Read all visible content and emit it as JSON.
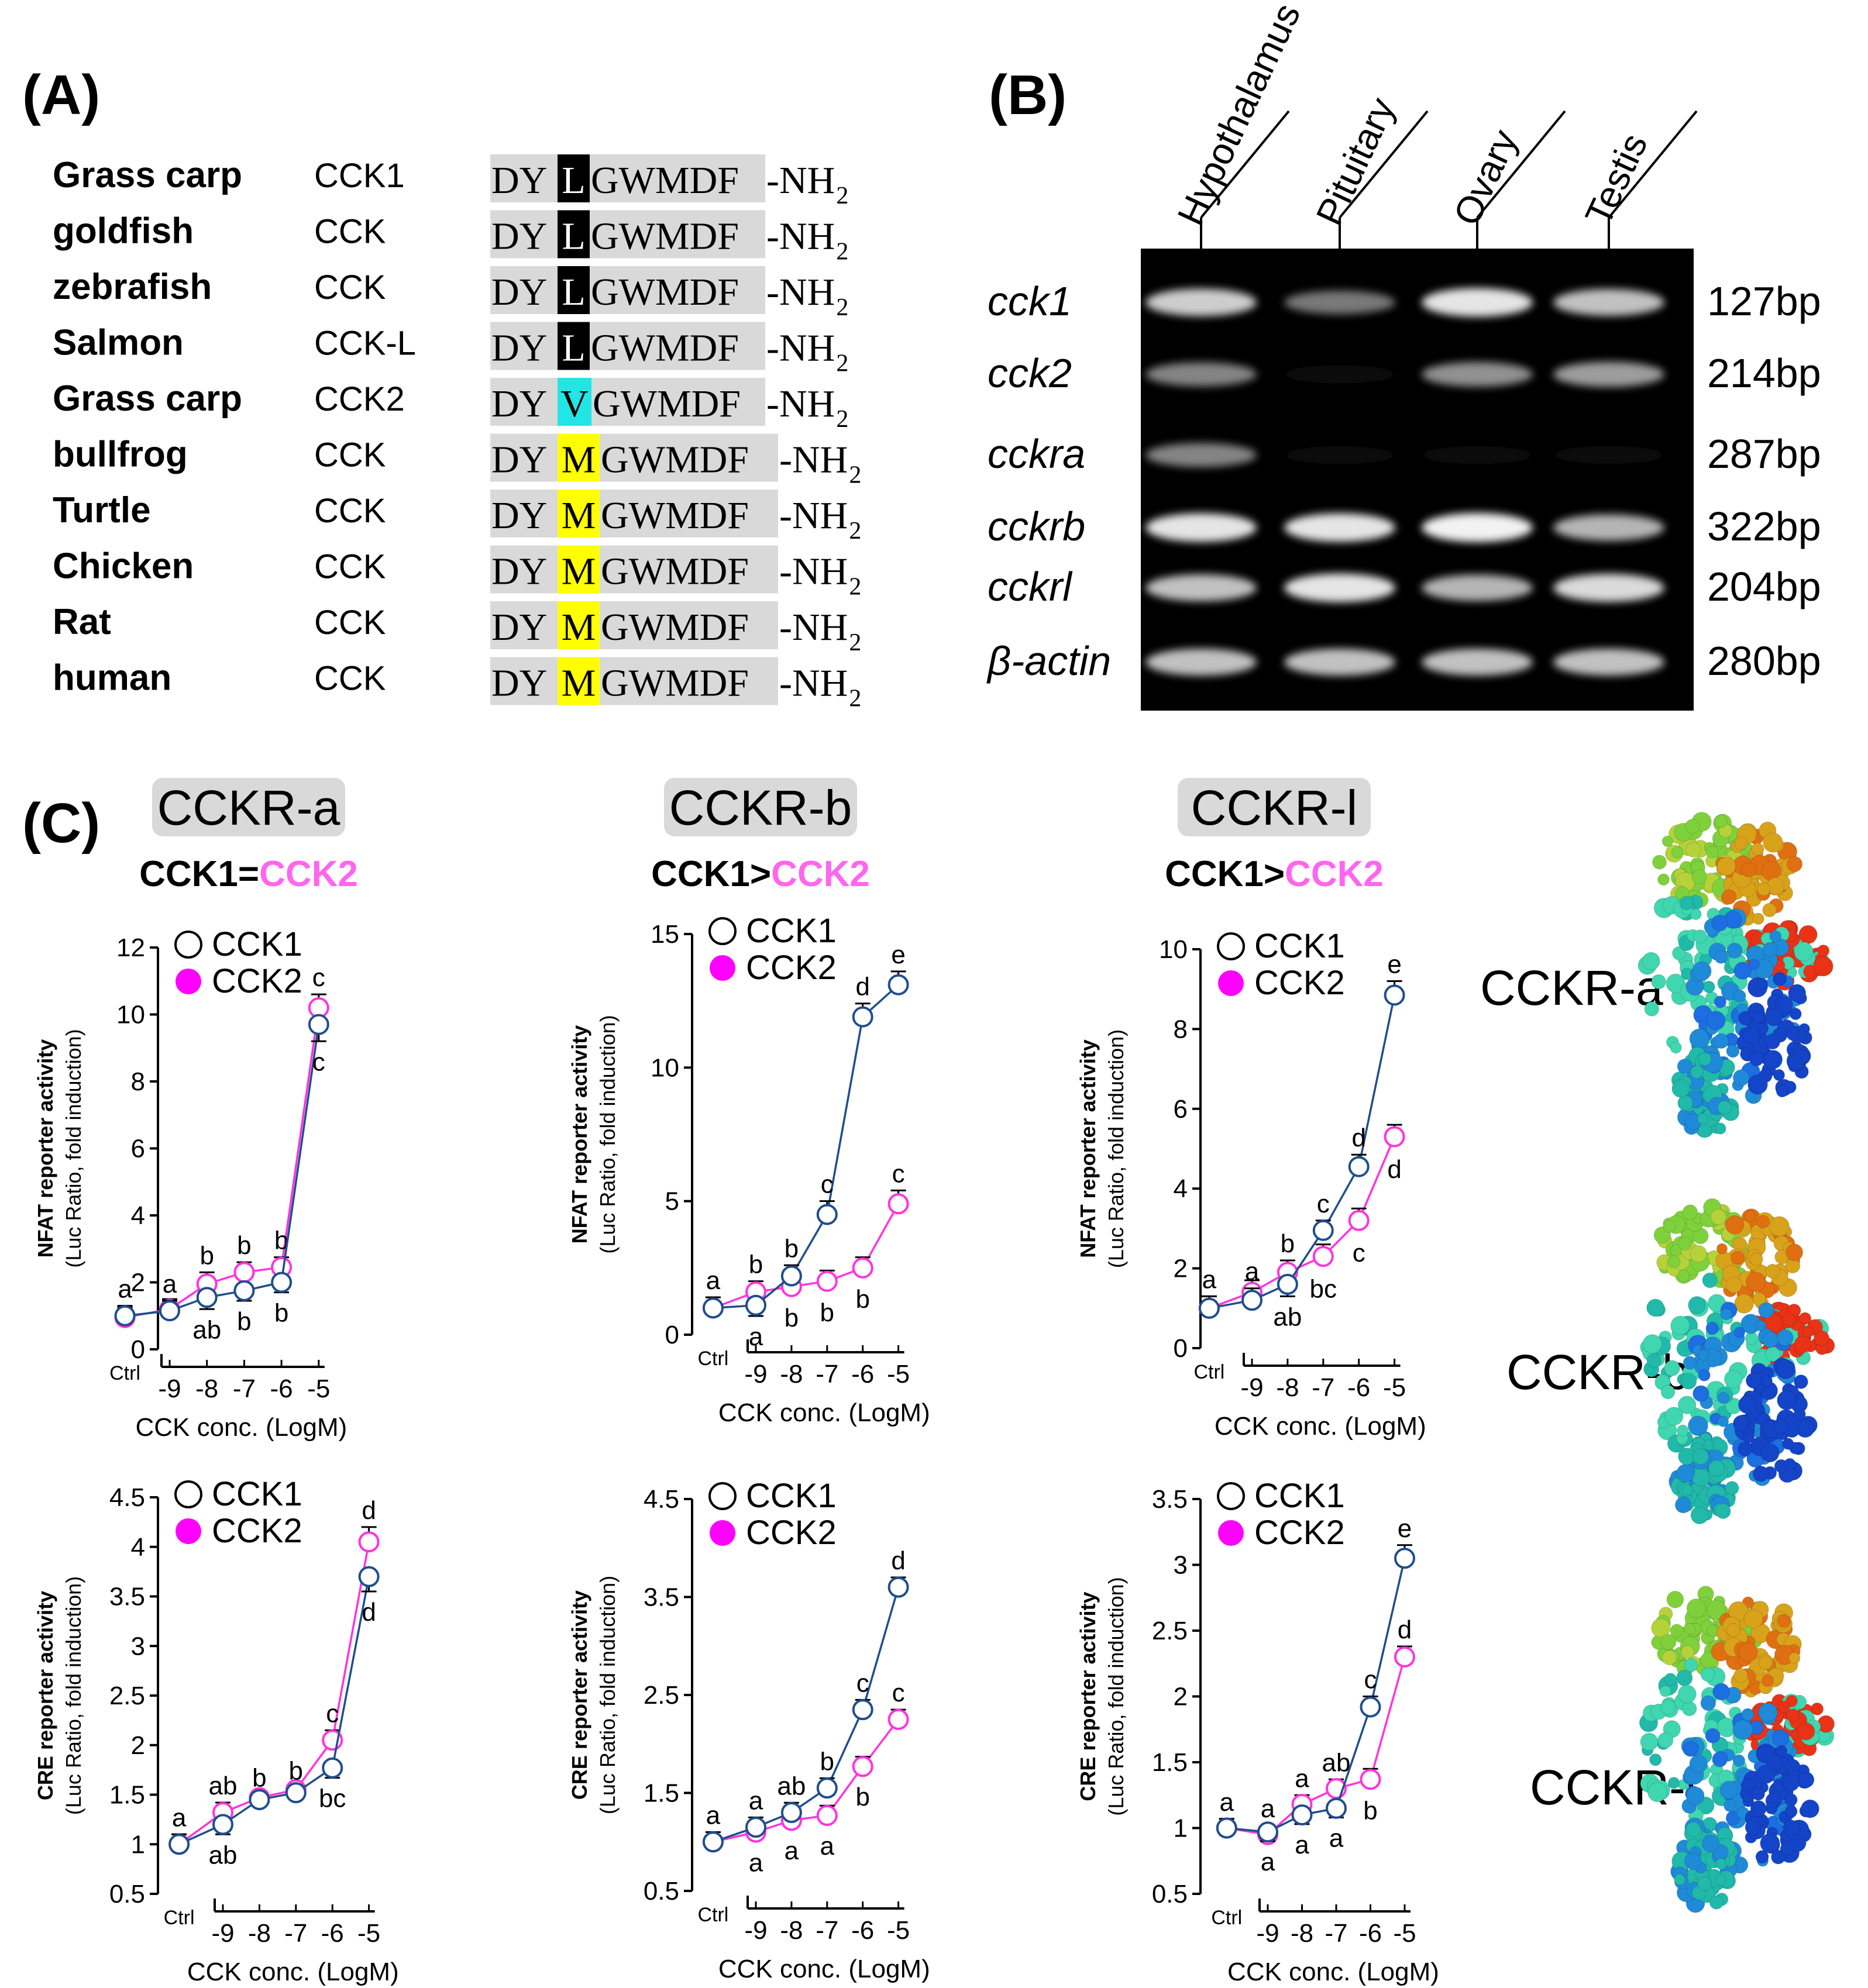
{
  "colors": {
    "cck1_line": "#1f4e8c",
    "cck2_line": "#ff33dd",
    "cck2_text": "#ff66ee",
    "leu_highlight": "#000000",
    "val_highlight": "#22e5e5",
    "met_highlight": "#ffff00",
    "seq_bg": "#d9d9d9",
    "gel_bg": "#000000"
  },
  "panelA": {
    "label": "(A)",
    "rows": [
      {
        "species": "Grass carp",
        "gene": "CCK1",
        "prefix": "DY",
        "residue": "L",
        "rest": "GWMDF",
        "suffix": "-NH",
        "sub": "2",
        "hl": "black"
      },
      {
        "species": "goldfish",
        "gene": "CCK",
        "prefix": "DY",
        "residue": "L",
        "rest": "GWMDF",
        "suffix": "-NH",
        "sub": "2",
        "hl": "black"
      },
      {
        "species": "zebrafish",
        "gene": "CCK",
        "prefix": "DY",
        "residue": "L",
        "rest": "GWMDF",
        "suffix": "-NH",
        "sub": "2",
        "hl": "black"
      },
      {
        "species": "Salmon",
        "gene": "CCK-L",
        "prefix": "DY",
        "residue": "L",
        "rest": "GWMDF",
        "suffix": "-NH",
        "sub": "2",
        "hl": "black"
      },
      {
        "species": "Grass carp",
        "gene": "CCK2",
        "prefix": "DY",
        "residue": "V",
        "rest": "GWMDF",
        "suffix": "-NH",
        "sub": "2",
        "hl": "cyan"
      },
      {
        "species": "bullfrog",
        "gene": "CCK",
        "prefix": "DY",
        "residue": "M",
        "rest": "GWMDF",
        "suffix": "-NH",
        "sub": "2",
        "hl": "yellow"
      },
      {
        "species": "Turtle",
        "gene": "CCK",
        "prefix": "DY",
        "residue": "M",
        "rest": "GWMDF",
        "suffix": "-NH",
        "sub": "2",
        "hl": "yellow"
      },
      {
        "species": "Chicken",
        "gene": "CCK",
        "prefix": "DY",
        "residue": "M",
        "rest": "GWMDF",
        "suffix": "-NH",
        "sub": "2",
        "hl": "yellow"
      },
      {
        "species": "Rat",
        "gene": "CCK",
        "prefix": "DY",
        "residue": "M",
        "rest": "GWMDF",
        "suffix": "-NH",
        "sub": "2",
        "hl": "yellow"
      },
      {
        "species": "human",
        "gene": "CCK",
        "prefix": "DY",
        "residue": "M",
        "rest": "GWMDF",
        "suffix": "-NH",
        "sub": "2",
        "hl": "yellow"
      }
    ]
  },
  "panelB": {
    "label": "(B)",
    "lanes": [
      "Hypothalamus",
      "Pituitary",
      "Ovary",
      "Testis"
    ],
    "genes": [
      {
        "name": "cck1",
        "size": "127bp",
        "intensity": [
          0.85,
          0.5,
          0.95,
          0.8
        ]
      },
      {
        "name": "cck2",
        "size": "214bp",
        "intensity": [
          0.55,
          0.06,
          0.6,
          0.65
        ]
      },
      {
        "name": "cckra",
        "size": "287bp",
        "intensity": [
          0.55,
          0.04,
          0.04,
          0.04
        ]
      },
      {
        "name": "cckrb",
        "size": "322bp",
        "intensity": [
          0.95,
          0.95,
          1.0,
          0.75
        ]
      },
      {
        "name": "cckrl",
        "size": "204bp",
        "intensity": [
          0.8,
          0.95,
          0.75,
          0.9
        ]
      },
      {
        "name": "β-actin",
        "size": "280bp",
        "intensity": [
          0.8,
          0.8,
          0.8,
          0.8
        ]
      }
    ]
  },
  "panelC": {
    "label": "(C)",
    "columns": [
      {
        "title": "CCKR-a",
        "cmp_a": "CCK1",
        "cmp_op": "=",
        "cmp_b": "CCK2"
      },
      {
        "title": "CCKR-b",
        "cmp_a": "CCK1",
        "cmp_op": ">",
        "cmp_b": "CCK2"
      },
      {
        "title": "CCKR-l",
        "cmp_a": "CCK1",
        "cmp_op": ">",
        "cmp_b": "CCK2"
      }
    ],
    "structures": [
      "CCKR-a",
      "CCKR-b",
      "CCKR-l"
    ]
  },
  "chart_data": [
    {
      "type": "line",
      "id": "nfat_a",
      "title": "CCKR-a NFAT",
      "ylabel": "NFAT reporter activity",
      "ylabel2": "(Luc Ratio, fold induction)",
      "xlabel": "CCK conc. (LogM)",
      "x": [
        "Ctrl",
        "-9",
        "-8",
        "-7",
        "-6",
        "-5"
      ],
      "ylim": [
        0,
        12
      ],
      "yticks": [
        "0",
        "2",
        "4",
        "6",
        "8",
        "10",
        "12"
      ],
      "legend": [
        "CCK1",
        "CCK2"
      ],
      "series": [
        {
          "name": "CCK1",
          "values": [
            1.0,
            1.15,
            1.55,
            1.75,
            2.0,
            9.7
          ],
          "errors": [
            0.3,
            0.3,
            0.35,
            0.3,
            0.3,
            0.5
          ],
          "letters": [
            "a",
            "a",
            "ab",
            "b",
            "b",
            "c"
          ],
          "letter_pos": [
            "above",
            "above",
            "below",
            "below",
            "below",
            "below"
          ]
        },
        {
          "name": "CCK2",
          "values": [
            0.95,
            1.2,
            1.95,
            2.3,
            2.45,
            10.2
          ],
          "errors": [
            0.3,
            0.3,
            0.35,
            0.3,
            0.3,
            0.4
          ],
          "letters": [
            "",
            "",
            "b",
            "b",
            "b",
            "c"
          ],
          "letter_pos": [
            "above",
            "above",
            "above",
            "above",
            "above",
            "above"
          ]
        }
      ]
    },
    {
      "type": "line",
      "id": "nfat_b",
      "title": "CCKR-b NFAT",
      "ylabel": "NFAT reporter activity",
      "ylabel2": "(Luc Ratio, fold induction)",
      "xlabel": "CCK conc. (LogM)",
      "x": [
        "Ctrl",
        "-9",
        "-8",
        "-7",
        "-6",
        "-5"
      ],
      "ylim": [
        0,
        15
      ],
      "yticks": [
        "0",
        "5",
        "10",
        "15"
      ],
      "legend": [
        "CCK1",
        "CCK2"
      ],
      "series": [
        {
          "name": "CCK1",
          "values": [
            1.0,
            1.1,
            2.2,
            4.5,
            11.9,
            13.1
          ],
          "errors": [
            0.4,
            0.4,
            0.4,
            0.5,
            0.5,
            0.5
          ],
          "letters": [
            "a",
            "a",
            "b",
            "c",
            "d",
            "e"
          ],
          "letter_pos": [
            "above",
            "below",
            "above",
            "above",
            "above",
            "above"
          ]
        },
        {
          "name": "CCK2",
          "values": [
            1.0,
            1.6,
            1.8,
            2.0,
            2.5,
            4.9
          ],
          "errors": [
            0.4,
            0.4,
            0.4,
            0.4,
            0.4,
            0.5
          ],
          "letters": [
            "",
            "b",
            "b",
            "b",
            "b",
            "c"
          ],
          "letter_pos": [
            "above",
            "above",
            "below",
            "below",
            "below",
            "above"
          ]
        }
      ]
    },
    {
      "type": "line",
      "id": "nfat_l",
      "title": "CCKR-l NFAT",
      "ylabel": "NFAT reporter activity",
      "ylabel2": "(Luc Ratio, fold induction)",
      "xlabel": "CCK conc. (LogM)",
      "x": [
        "Ctrl",
        "-9",
        "-8",
        "-7",
        "-6",
        "-5"
      ],
      "ylim": [
        0,
        10
      ],
      "yticks": [
        "0",
        "2",
        "4",
        "6",
        "8",
        "10"
      ],
      "legend": [
        "CCK1",
        "CCK2"
      ],
      "series": [
        {
          "name": "CCK1",
          "values": [
            1.0,
            1.2,
            1.6,
            2.95,
            4.55,
            8.85
          ],
          "errors": [
            0.3,
            0.3,
            0.3,
            0.25,
            0.3,
            0.35
          ],
          "letters": [
            "a",
            "a",
            "ab",
            "c",
            "d",
            "e"
          ],
          "letter_pos": [
            "above",
            "above",
            "below",
            "above",
            "above",
            "above"
          ]
        },
        {
          "name": "CCK2",
          "values": [
            1.0,
            1.4,
            1.9,
            2.3,
            3.2,
            5.3
          ],
          "errors": [
            0.3,
            0.3,
            0.3,
            0.3,
            0.3,
            0.3
          ],
          "letters": [
            "",
            "",
            "b",
            "bc",
            "c",
            "d"
          ],
          "letter_pos": [
            "above",
            "above",
            "above",
            "below",
            "below",
            "below"
          ]
        }
      ]
    },
    {
      "type": "line",
      "id": "cre_a",
      "title": "CCKR-a CRE",
      "ylabel": "CRE reporter activity",
      "ylabel2": "(Luc Ratio, fold induction)",
      "xlabel": "CCK conc. (LogM)",
      "x": [
        "Ctrl",
        "-9",
        "-8",
        "-7",
        "-6",
        "-5"
      ],
      "ylim": [
        0.5,
        4.5
      ],
      "yticks": [
        "0.5",
        "1",
        "1.5",
        "2",
        "2.5",
        "3",
        "3.5",
        "4",
        "4.5"
      ],
      "legend": [
        "CCK1",
        "CCK2"
      ],
      "series": [
        {
          "name": "CCK1",
          "values": [
            1.0,
            1.2,
            1.45,
            1.52,
            1.77,
            3.7
          ],
          "errors": [
            0.1,
            0.1,
            0.05,
            0.05,
            0.1,
            0.15
          ],
          "letters": [
            "a",
            "ab",
            "b",
            "b",
            "bc",
            "d"
          ],
          "letter_pos": [
            "above",
            "below",
            "above",
            "above",
            "below",
            "below"
          ]
        },
        {
          "name": "CCK2",
          "values": [
            1.0,
            1.32,
            1.47,
            1.55,
            2.05,
            4.05
          ],
          "errors": [
            0.1,
            0.1,
            0.05,
            0.05,
            0.1,
            0.15
          ],
          "letters": [
            "",
            "ab",
            "",
            "",
            "c",
            "d"
          ],
          "letter_pos": [
            "above",
            "above",
            "above",
            "above",
            "above",
            "above"
          ]
        }
      ]
    },
    {
      "type": "line",
      "id": "cre_b",
      "title": "CCKR-b CRE",
      "ylabel": "CRE reporter activity",
      "ylabel2": "(Luc Ratio, fold induction)",
      "xlabel": "CCK conc. (LogM)",
      "x": [
        "Ctrl",
        "-9",
        "-8",
        "-7",
        "-6",
        "-5"
      ],
      "ylim": [
        0.5,
        4.5
      ],
      "yticks": [
        "0.5",
        "1.5",
        "2.5",
        "3.5",
        "4.5"
      ],
      "legend": [
        "CCK1",
        "CCK2"
      ],
      "series": [
        {
          "name": "CCK1",
          "values": [
            1.0,
            1.15,
            1.3,
            1.55,
            2.35,
            3.6
          ],
          "errors": [
            0.1,
            0.1,
            0.1,
            0.1,
            0.1,
            0.1
          ],
          "letters": [
            "a",
            "a",
            "ab",
            "b",
            "c",
            "d"
          ],
          "letter_pos": [
            "above",
            "above",
            "above",
            "above",
            "above",
            "above"
          ]
        },
        {
          "name": "CCK2",
          "values": [
            1.0,
            1.1,
            1.22,
            1.27,
            1.77,
            2.25
          ],
          "errors": [
            0.1,
            0.1,
            0.1,
            0.1,
            0.1,
            0.1
          ],
          "letters": [
            "",
            "a",
            "a",
            "a",
            "b",
            "c"
          ],
          "letter_pos": [
            "above",
            "below",
            "below",
            "below",
            "below",
            "above"
          ]
        }
      ]
    },
    {
      "type": "line",
      "id": "cre_l",
      "title": "CCKR-l CRE",
      "ylabel": "CRE reporter activity",
      "ylabel2": "(Luc Ratio, fold induction)",
      "xlabel": "CCK conc. (LogM)",
      "x": [
        "Ctrl",
        "-9",
        "-8",
        "-7",
        "-6",
        "-5"
      ],
      "ylim": [
        0.5,
        3.5
      ],
      "yticks": [
        "0.5",
        "1",
        "1.5",
        "2",
        "2.5",
        "3",
        "3.5"
      ],
      "legend": [
        "CCK1",
        "CCK2"
      ],
      "series": [
        {
          "name": "CCK1",
          "values": [
            1.0,
            0.97,
            1.1,
            1.15,
            1.92,
            3.05
          ],
          "errors": [
            0.07,
            0.07,
            0.07,
            0.07,
            0.08,
            0.1
          ],
          "letters": [
            "a",
            "a",
            "a",
            "a",
            "c",
            "e"
          ],
          "letter_pos": [
            "above",
            "below",
            "below",
            "below",
            "above",
            "above"
          ]
        },
        {
          "name": "CCK2",
          "values": [
            1.0,
            0.95,
            1.18,
            1.3,
            1.37,
            2.3
          ],
          "errors": [
            0.07,
            0.07,
            0.07,
            0.07,
            0.08,
            0.08
          ],
          "letters": [
            "",
            "a",
            "a",
            "ab",
            "b",
            "d"
          ],
          "letter_pos": [
            "above",
            "above",
            "above",
            "above",
            "below",
            "above"
          ]
        }
      ]
    }
  ]
}
